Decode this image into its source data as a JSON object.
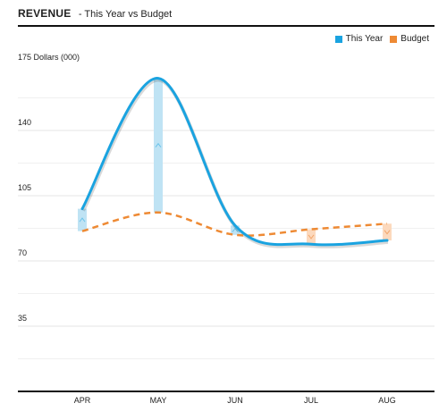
{
  "header": {
    "title": "REVENUE",
    "subtitle": "- This Year vs Budget"
  },
  "chart_data": {
    "type": "line",
    "title": "REVENUE",
    "subtitle": "- This Year vs Budget",
    "ylabel": "Dollars (000)",
    "xlabel": "",
    "categories": [
      "APR",
      "MAY",
      "JUN",
      "JUL",
      "AUG"
    ],
    "ylim": [
      0,
      175
    ],
    "yticks": [
      35,
      70,
      105,
      140,
      175
    ],
    "grid": true,
    "legend_position": "top-right",
    "series": [
      {
        "name": "This Year",
        "values": [
          98,
          168,
          89,
          79,
          81
        ],
        "color": "#1aa3e0",
        "style": "solid"
      },
      {
        "name": "Budget",
        "values": [
          86,
          96,
          84,
          87,
          90
        ],
        "color": "#ee8a34",
        "style": "dashed"
      }
    ],
    "variance_colors": {
      "above": "#bfe3f4",
      "below": "#fcd9bd"
    }
  }
}
